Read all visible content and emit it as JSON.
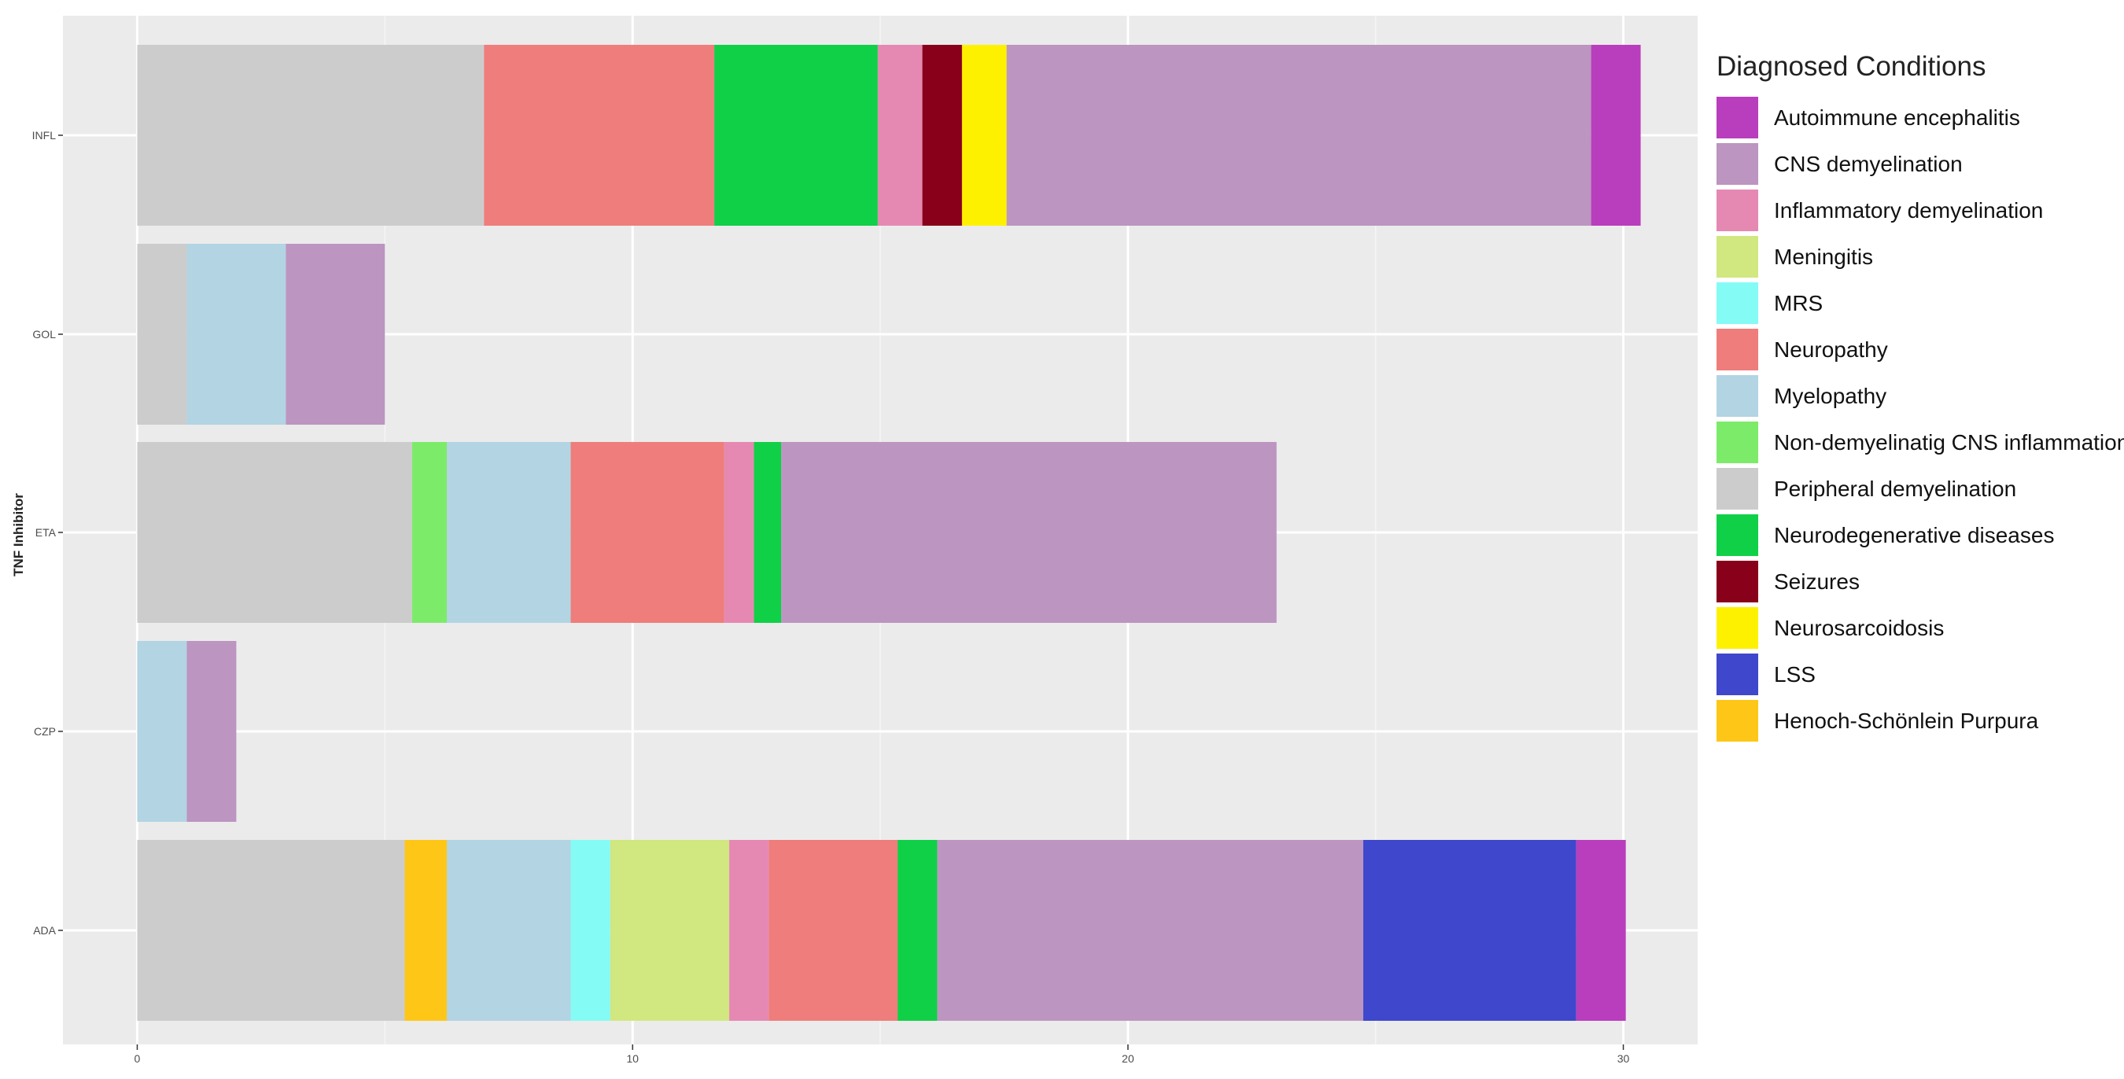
{
  "chart_data": {
    "type": "bar",
    "orientation": "horizontal",
    "stacked": true,
    "ylabel": "TNF Inhibitor",
    "xlabel": "",
    "xlim": [
      -1.5,
      31.5
    ],
    "x_ticks": [
      0,
      10,
      20,
      30
    ],
    "grid": true,
    "legend_position": "right",
    "legend_title": "Diagnosed Conditions",
    "categories": [
      "INFL",
      "GOL",
      "ETA",
      "CZP",
      "ADA"
    ],
    "conditions": [
      {
        "name": "Autoimmune encephalitis",
        "color": "#B93EBD"
      },
      {
        "name": "CNS demyelination",
        "color": "#BC95C0"
      },
      {
        "name": "Inflammatory demyelination",
        "color": "#E589B3"
      },
      {
        "name": "Meningitis",
        "color": "#D1E77F"
      },
      {
        "name": "MRS",
        "color": "#85FBF5"
      },
      {
        "name": "Neuropathy",
        "color": "#EF7D7B"
      },
      {
        "name": "Myelopathy",
        "color": "#B2D4E3"
      },
      {
        "name": "Non-demyelinatig CNS inflammation",
        "color": "#7DEB6A"
      },
      {
        "name": "Peripheral demyelination",
        "color": "#CCCCCC"
      },
      {
        "name": "Neurodegenerative diseases",
        "color": "#10D047"
      },
      {
        "name": "Seizures",
        "color": "#880019"
      },
      {
        "name": "Neurosarcoidosis",
        "color": "#FEF100"
      },
      {
        "name": "LSS",
        "color": "#3F47CC"
      },
      {
        "name": "Henoch-Schönlein Purpura",
        "color": "#FEC717"
      }
    ],
    "series": [
      {
        "category": "INFL",
        "segments": [
          {
            "condition": "Peripheral demyelination",
            "value": 7
          },
          {
            "condition": "Neuropathy",
            "value": 4.65
          },
          {
            "condition": "Neurodegenerative diseases",
            "value": 3.3
          },
          {
            "condition": "Inflammatory demyelination",
            "value": 0.9
          },
          {
            "condition": "Seizures",
            "value": 0.8
          },
          {
            "condition": "Neurosarcoidosis",
            "value": 0.9
          },
          {
            "condition": "CNS demyelination",
            "value": 11.8
          },
          {
            "condition": "Autoimmune encephalitis",
            "value": 1
          }
        ]
      },
      {
        "category": "GOL",
        "segments": [
          {
            "condition": "Peripheral demyelination",
            "value": 1
          },
          {
            "condition": "Myelopathy",
            "value": 2
          },
          {
            "condition": "CNS demyelination",
            "value": 2
          }
        ]
      },
      {
        "category": "ETA",
        "segments": [
          {
            "condition": "Peripheral demyelination",
            "value": 5.55
          },
          {
            "condition": "Non-demyelinatig CNS inflammation",
            "value": 0.7
          },
          {
            "condition": "Myelopathy",
            "value": 2.5
          },
          {
            "condition": "Neuropathy",
            "value": 3.1
          },
          {
            "condition": "Inflammatory demyelination",
            "value": 0.6
          },
          {
            "condition": "Neurodegenerative diseases",
            "value": 0.55
          },
          {
            "condition": "CNS demyelination",
            "value": 10
          }
        ]
      },
      {
        "category": "CZP",
        "segments": [
          {
            "condition": "Myelopathy",
            "value": 1
          },
          {
            "condition": "CNS demyelination",
            "value": 1
          }
        ]
      },
      {
        "category": "ADA",
        "segments": [
          {
            "condition": "Peripheral demyelination",
            "value": 5.4
          },
          {
            "condition": "Henoch-Schönlein Purpura",
            "value": 0.85
          },
          {
            "condition": "Myelopathy",
            "value": 2.5
          },
          {
            "condition": "MRS",
            "value": 0.8
          },
          {
            "condition": "Meningitis",
            "value": 2.4
          },
          {
            "condition": "Inflammatory demyelination",
            "value": 0.8
          },
          {
            "condition": "Neuropathy",
            "value": 2.6
          },
          {
            "condition": "Neurodegenerative diseases",
            "value": 0.8
          },
          {
            "condition": "CNS demyelination",
            "value": 8.6
          },
          {
            "condition": "LSS",
            "value": 4.3
          },
          {
            "condition": "Autoimmune encephalitis",
            "value": 1
          }
        ]
      }
    ]
  }
}
